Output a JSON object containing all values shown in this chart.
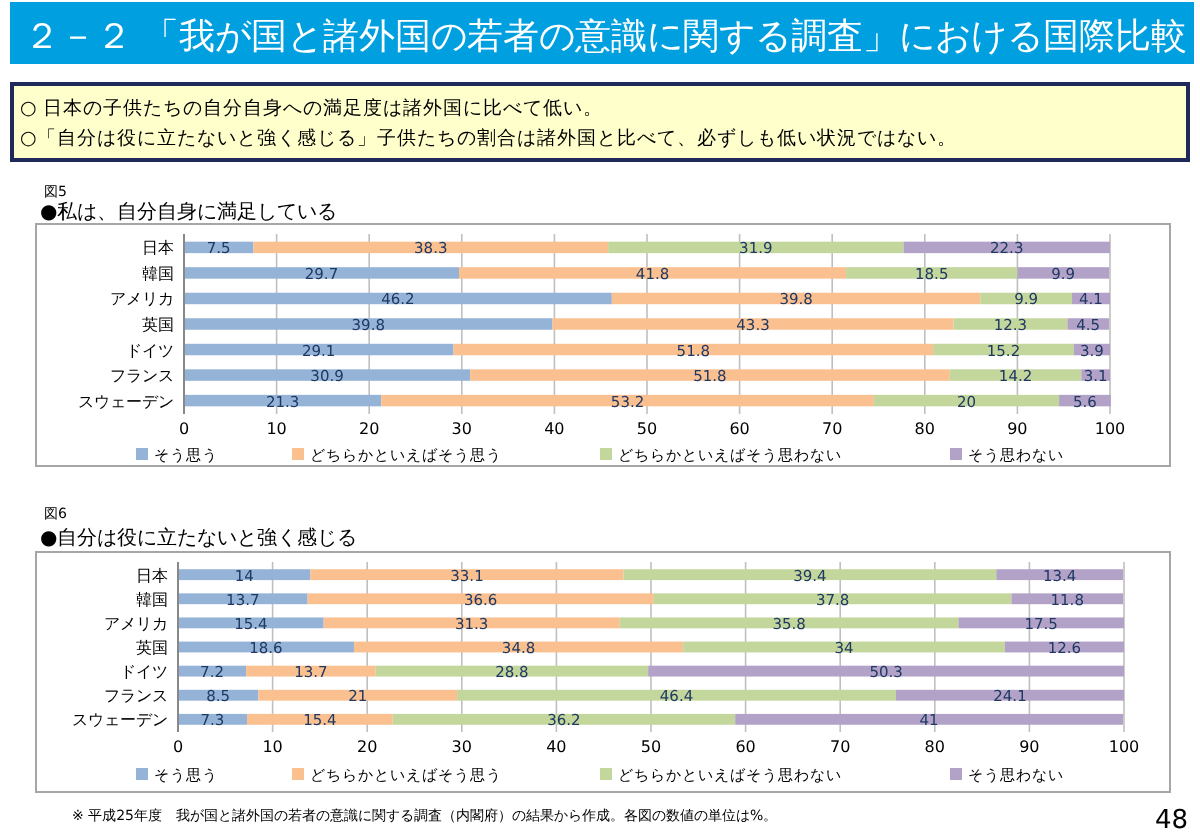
{
  "chart_data": [
    {
      "type": "bar",
      "orientation": "horizontal",
      "stacked": true,
      "title": "●私は、自分自身に満足している",
      "annotations": [
        "２－２ 「我が国と諸外国の若者の意識に関する調査」における国際比較",
        "○ 日本の子供たちの自分自身への満足度は諸外国に比べて低い。",
        "○「自分は役に立たないと強く感じる」子供たちの割合は諸外国と比べて、必ずしも低い状況ではない。",
        "図5"
      ],
      "categories": [
        "日本",
        "韓国",
        "アメリカ",
        "英国",
        "ドイツ",
        "フランス",
        "スウェーデン"
      ],
      "series": [
        {
          "name": "そう思う",
          "color": "#95b3d7",
          "values": [
            7.5,
            29.7,
            46.2,
            39.8,
            29.1,
            30.9,
            21.3
          ]
        },
        {
          "name": "どちらかといえばそう思う",
          "color": "#fac090",
          "values": [
            38.3,
            41.8,
            39.8,
            43.3,
            51.8,
            51.8,
            53.2
          ]
        },
        {
          "name": "どちらかといえばそう思わない",
          "color": "#c3d69b",
          "values": [
            31.9,
            18.5,
            9.9,
            12.3,
            15.2,
            14.2,
            20
          ]
        },
        {
          "name": "そう思わない",
          "color": "#b3a2c7",
          "values": [
            22.3,
            9.9,
            4.1,
            4.5,
            3.9,
            3.1,
            5.6
          ]
        }
      ],
      "xlim": [
        0,
        100
      ],
      "xticks": [
        0,
        10,
        20,
        30,
        40,
        50,
        60,
        70,
        80,
        90,
        100
      ],
      "grid": "x",
      "legend": "bottom",
      "data_labels": true
    },
    {
      "type": "bar",
      "orientation": "horizontal",
      "stacked": true,
      "title": "●自分は役に立たないと強く感じる",
      "annotations": [
        "図6",
        "※ 平成25年度　我が国と諸外国の若者の意識に関する調査（内閣府）の結果から作成。各図の数値の単位は%。",
        "48"
      ],
      "categories": [
        "日本",
        "韓国",
        "アメリカ",
        "英国",
        "ドイツ",
        "フランス",
        "スウェーデン"
      ],
      "series": [
        {
          "name": "そう思う",
          "color": "#95b3d7",
          "values": [
            14,
            13.7,
            15.4,
            18.6,
            7.2,
            8.5,
            7.3
          ]
        },
        {
          "name": "どちらかといえばそう思う",
          "color": "#fac090",
          "values": [
            33.1,
            36.6,
            31.3,
            34.8,
            13.7,
            21,
            15.4
          ]
        },
        {
          "name": "どちらかといえばそう思わない",
          "color": "#c3d69b",
          "values": [
            39.4,
            37.8,
            35.8,
            34,
            28.8,
            46.4,
            36.2
          ]
        },
        {
          "name": "そう思わない",
          "color": "#b3a2c7",
          "values": [
            13.4,
            11.8,
            17.5,
            12.6,
            50.3,
            24.1,
            41
          ]
        }
      ],
      "xlim": [
        0,
        100
      ],
      "xticks": [
        0,
        10,
        20,
        30,
        40,
        50,
        60,
        70,
        80,
        90,
        100
      ],
      "grid": "x",
      "legend": "bottom",
      "data_labels": true
    }
  ]
}
